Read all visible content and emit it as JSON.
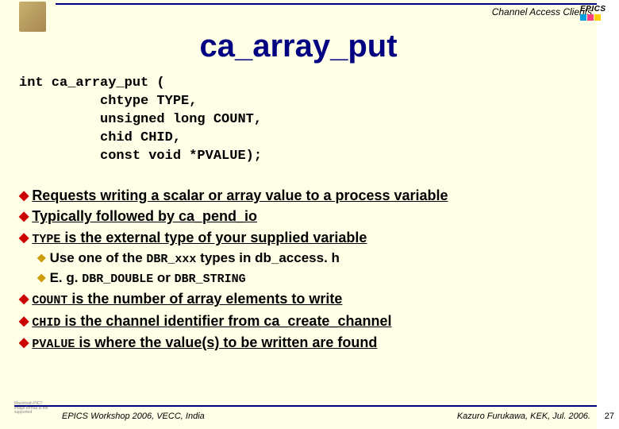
{
  "header": {
    "topic": "Channel Access Clients",
    "epics": "EPICS"
  },
  "title": "ca_array_put",
  "code": {
    "l1": "int ca_array_put (",
    "l2": "          chtype TYPE,",
    "l3": "          unsigned long COUNT,",
    "l4": "          chid CHID,",
    "l5": "          const void *PVALUE);"
  },
  "bullets": {
    "b1": "Requests writing a scalar or array value to a process variable",
    "b2": "Typically followed by ca_pend_io",
    "b3_pre": "TYPE",
    "b3_post": " is the external type of your supplied variable",
    "b3a_pre": "Use one of the ",
    "b3a_mono": "DBR_xxx",
    "b3a_post": " types in db_access. h",
    "b3b_pre": "E. g. ",
    "b3b_mono1": "DBR_DOUBLE",
    "b3b_mid": " or ",
    "b3b_mono2": "DBR_STRING",
    "b4_pre": "COUNT",
    "b4_post": " is the number of array elements to write",
    "b5_pre": "CHID",
    "b5_post": " is the channel identifier from ca_create_channel",
    "b6_pre": "PVALUE",
    "b6_post": " is where the value(s) to be written are found"
  },
  "footer": {
    "left": "EPICS Workshop 2006, VECC, India",
    "right": "Kazuro Furukawa, KEK, Jul. 2006.",
    "page": "27",
    "icon_text": "Macintosh PICT image format is not supported"
  },
  "colors": {
    "epics_c1": "#00a0e0",
    "epics_c2": "#ff4080",
    "epics_c3": "#ffd000"
  }
}
